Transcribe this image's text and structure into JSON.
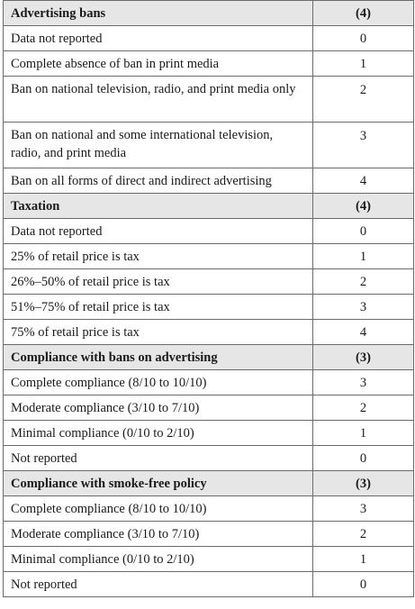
{
  "sections": [
    {
      "title": "Advertising bans",
      "max": "(4)",
      "rows": [
        {
          "label": "Data not reported",
          "score": "0"
        },
        {
          "label": "Complete absence of ban in print media",
          "score": "1"
        },
        {
          "label": "Ban on national television, radio, and print media only",
          "score": "2"
        },
        {
          "label": "Ban on national and some international television, radio, and print media",
          "score": "3"
        },
        {
          "label": "Ban on all forms of direct and indirect advertising",
          "score": "4"
        }
      ]
    },
    {
      "title": "Taxation",
      "max": "(4)",
      "rows": [
        {
          "label": "Data not reported",
          "score": "0"
        },
        {
          "label": "25% of retail price is tax",
          "score": "1"
        },
        {
          "label": "26%–50% of retail price is tax",
          "score": "2"
        },
        {
          "label": "51%–75% of retail price is tax",
          "score": "3"
        },
        {
          "label": "75% of retail price is tax",
          "score": "4"
        }
      ]
    },
    {
      "title": "Compliance with bans on advertising",
      "max": "(3)",
      "rows": [
        {
          "label": "Complete compliance (8/10 to 10/10)",
          "score": "3"
        },
        {
          "label": "Moderate compliance (3/10 to 7/10)",
          "score": "2"
        },
        {
          "label": "Minimal compliance (0/10 to 2/10)",
          "score": "1"
        },
        {
          "label": "Not reported",
          "score": "0"
        }
      ]
    },
    {
      "title": "Compliance with smoke-free policy",
      "max": "(3)",
      "rows": [
        {
          "label": "Complete compliance (8/10 to 10/10)",
          "score": "3"
        },
        {
          "label": "Moderate compliance (3/10 to 7/10)",
          "score": "2"
        },
        {
          "label": "Minimal compliance (0/10 to 2/10)",
          "score": "1"
        },
        {
          "label": "Not reported",
          "score": "0"
        }
      ]
    }
  ]
}
